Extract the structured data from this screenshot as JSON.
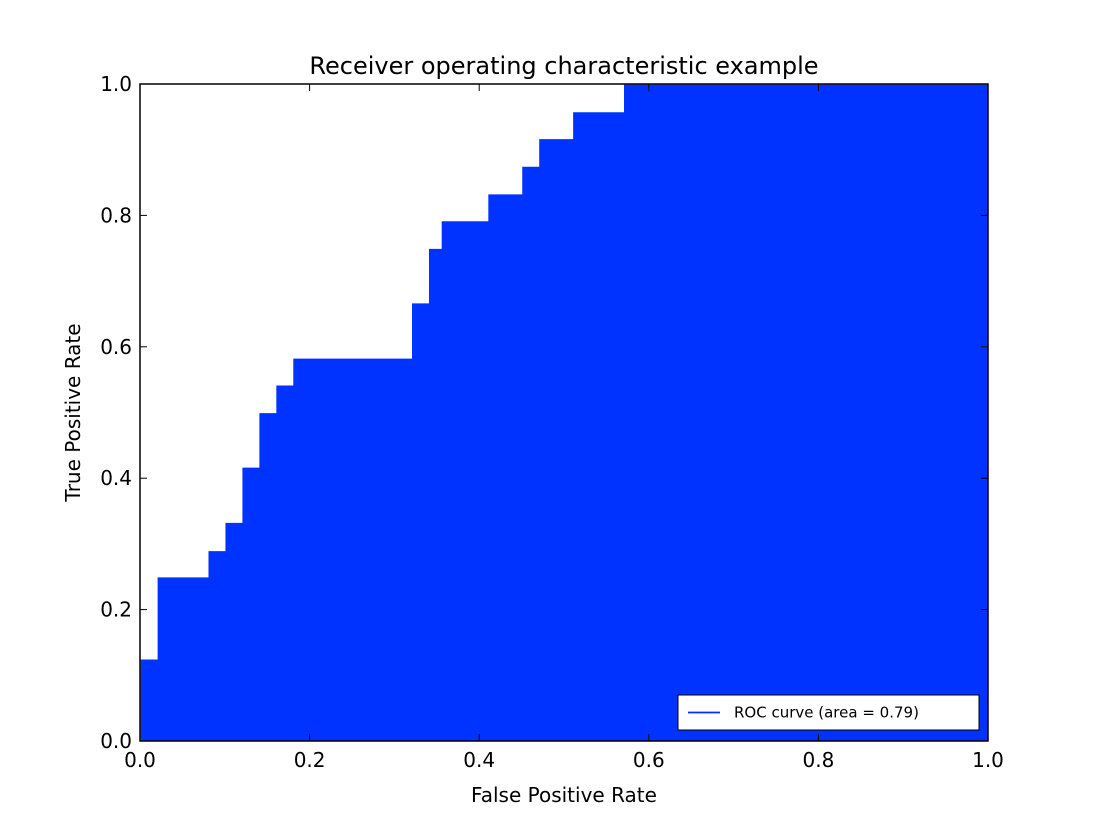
{
  "chart_data": {
    "type": "area",
    "title": "Receiver operating characteristic example",
    "xlabel": "False Positive Rate",
    "ylabel": "True Positive Rate",
    "xlim": [
      0.0,
      1.0
    ],
    "ylim": [
      0.0,
      1.0
    ],
    "x_ticks": [
      0.0,
      0.2,
      0.4,
      0.6,
      0.8,
      1.0
    ],
    "x_tick_labels": [
      "0.0",
      "0.2",
      "0.4",
      "0.6",
      "0.8",
      "1.0"
    ],
    "y_ticks": [
      0.0,
      0.2,
      0.4,
      0.6,
      0.8,
      1.0
    ],
    "y_tick_labels": [
      "0.0",
      "0.2",
      "0.4",
      "0.6",
      "0.8",
      "1.0"
    ],
    "grid": false,
    "legend_position": "lower right",
    "series": [
      {
        "name": "ROC curve (area = 0.79)",
        "color": "#0033ff",
        "fill_color": "#0033ff",
        "line_color": "#ffffff",
        "step": true,
        "x": [
          0.0,
          0.0,
          0.02,
          0.02,
          0.08,
          0.08,
          0.1,
          0.1,
          0.12,
          0.12,
          0.14,
          0.14,
          0.16,
          0.16,
          0.18,
          0.18,
          0.32,
          0.32,
          0.34,
          0.34,
          0.355,
          0.355,
          0.41,
          0.41,
          0.45,
          0.45,
          0.47,
          0.47,
          0.51,
          0.51,
          0.57,
          0.57,
          1.0
        ],
        "y": [
          0.0,
          0.125,
          0.125,
          0.25,
          0.25,
          0.29,
          0.29,
          0.333,
          0.333,
          0.417,
          0.417,
          0.5,
          0.5,
          0.542,
          0.542,
          0.583,
          0.583,
          0.667,
          0.667,
          0.75,
          0.75,
          0.792,
          0.792,
          0.833,
          0.833,
          0.875,
          0.875,
          0.917,
          0.917,
          0.958,
          0.958,
          1.0,
          1.0
        ]
      }
    ]
  }
}
